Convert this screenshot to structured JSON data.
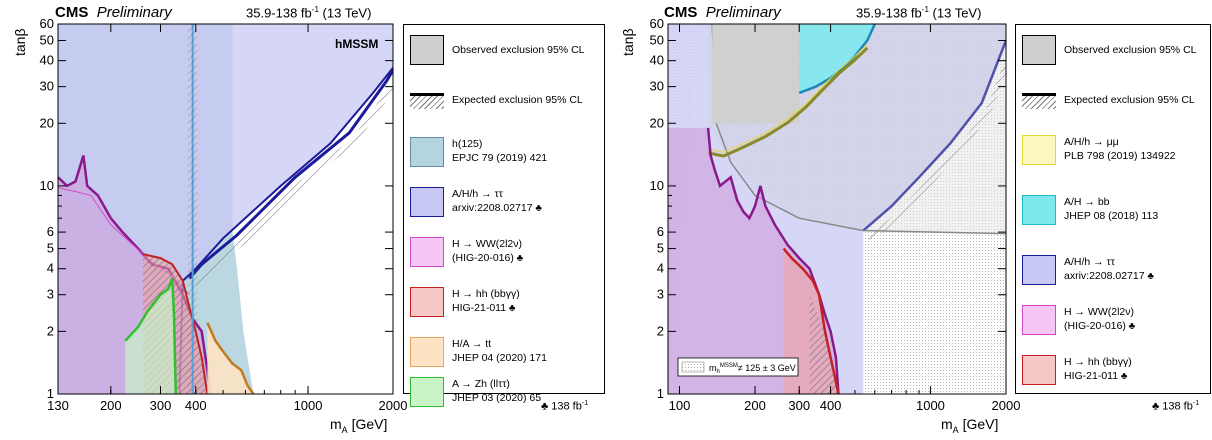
{
  "chart_data": [
    {
      "type": "area",
      "header": {
        "experiment": "CMS",
        "status": "Preliminary",
        "lumi": "35.9-138 fb",
        "lumi_sup": "-1",
        "energy": "(13 TeV)"
      },
      "model_label": "hMSSM",
      "xlabel": "m",
      "xlabel_sub": "A",
      "xlabel_unit": " [GeV]",
      "ylabel": "tanβ",
      "xscale": "log",
      "yscale": "log",
      "xlim": [
        130,
        2000
      ],
      "ylim": [
        1,
        60
      ],
      "xticks": [
        "130",
        "200",
        "300",
        "400",
        "1000",
        "2000"
      ],
      "xtick_values": [
        130,
        200,
        300,
        400,
        1000,
        2000
      ],
      "yticks": [
        "1",
        "2",
        "3",
        "4",
        "5",
        "6",
        "10",
        "20",
        "30",
        "40",
        "50",
        "60"
      ],
      "ytick_values": [
        1,
        2,
        3,
        4,
        5,
        6,
        10,
        20,
        30,
        40,
        50,
        60
      ],
      "legend": [
        {
          "text": "Observed exclusion 95% CL",
          "kind": "observed"
        },
        {
          "text": "Expected exclusion 95% CL",
          "kind": "expected"
        },
        {
          "text": "h(125)",
          "text2": "EPJC 79 (2019) 421",
          "kind": "fill",
          "fill": "#b4d4df",
          "stroke": "#5f8fa5",
          "club": false
        },
        {
          "text": "A/H/h → ττ",
          "text2": "arxiv:2208.02717",
          "kind": "fill",
          "fill": "#c8c8f4",
          "stroke": "#1b1b9a",
          "club": true
        },
        {
          "text": "H → WW(2l2ν)",
          "text2": "(HIG-20-016)",
          "kind": "fill",
          "fill": "#f6c6f6",
          "stroke": "#d04ad0",
          "club": true
        },
        {
          "text": "H → hh (bbγγ)",
          "text2": "HIG-21-011",
          "kind": "fill",
          "fill": "#f6c7c7",
          "stroke": "#c52020",
          "club": true
        },
        {
          "text": "H/A → tt",
          "text2": "JHEP 04 (2020) 171",
          "kind": "fill",
          "fill": "#fde3c3",
          "stroke": "#e6a760",
          "club": false
        },
        {
          "text": "A → Zh (llττ)",
          "text2": "JHEP 03 (2020) 65",
          "kind": "fill",
          "fill": "#c8f4c8",
          "stroke": "#2fbf2f",
          "club": false
        }
      ],
      "footnote": "♣ 138 fb",
      "footnote_sup": "-1",
      "series": [
        {
          "name": "h(125)",
          "color": "#b4d4df",
          "boundary": [
            [
              130,
              60
            ],
            [
              540,
              60
            ],
            [
              540,
              6
            ],
            [
              560,
              4
            ],
            [
              590,
              2
            ],
            [
              640,
              1
            ]
          ]
        },
        {
          "name": "A/H/h → ττ",
          "color": "#c8c8f4",
          "edge": "#1b1b9a",
          "observed": [
            [
              350,
              1
            ],
            [
              360,
              3.5
            ],
            [
              400,
              4
            ],
            [
              500,
              5.6
            ],
            [
              800,
              10
            ],
            [
              1200,
              16
            ],
            [
              1700,
              28
            ],
            [
              2000,
              37
            ]
          ],
          "expected": [
            [
              380,
              3.6
            ],
            [
              420,
              4.2
            ],
            [
              560,
              5.8
            ],
            [
              900,
              11
            ],
            [
              1400,
              18
            ],
            [
              1900,
              32
            ],
            [
              2000,
              36
            ]
          ]
        },
        {
          "name": "H → WW(2l2ν)",
          "color": "#f6c6f6",
          "edge": "#8a1a8a",
          "observed": [
            [
              130,
              11
            ],
            [
              140,
              10
            ],
            [
              150,
              10.5
            ],
            [
              160,
              14
            ],
            [
              165,
              10
            ],
            [
              180,
              9
            ],
            [
              200,
              7
            ],
            [
              220,
              6
            ],
            [
              250,
              5
            ],
            [
              280,
              4.2
            ],
            [
              320,
              4
            ],
            [
              360,
              3
            ],
            [
              390,
              2.3
            ],
            [
              420,
              2
            ],
            [
              440,
              1.3
            ],
            [
              450,
              1
            ]
          ],
          "expected": [
            [
              130,
              9.8
            ],
            [
              150,
              9.4
            ],
            [
              170,
              9
            ],
            [
              200,
              6.5
            ],
            [
              240,
              5.2
            ],
            [
              280,
              4.3
            ],
            [
              330,
              3.7
            ],
            [
              380,
              3
            ]
          ]
        },
        {
          "name": "H → hh (bbγγ)",
          "color": "#f6c7c7",
          "edge": "#c52020",
          "observed": [
            [
              260,
              4.7
            ],
            [
              300,
              4.5
            ],
            [
              330,
              4.2
            ],
            [
              360,
              3.5
            ],
            [
              380,
              2.6
            ],
            [
              400,
              2
            ],
            [
              420,
              1.5
            ],
            [
              440,
              1
            ]
          ]
        },
        {
          "name": "H/A → tt",
          "color": "#fde3c3",
          "edge": "#c07a20",
          "observed": [
            [
              440,
              2.2
            ],
            [
              470,
              1.8
            ],
            [
              500,
              1.6
            ],
            [
              540,
              1.4
            ],
            [
              580,
              1.3
            ],
            [
              610,
              1.1
            ],
            [
              640,
              1
            ]
          ]
        },
        {
          "name": "A → Zh (llττ)",
          "color": "#c8f4c8",
          "edge": "#2fbf2f",
          "observed": [
            [
              225,
              1.8
            ],
            [
              250,
              2.1
            ],
            [
              270,
              2.5
            ],
            [
              300,
              3
            ],
            [
              320,
              3.2
            ],
            [
              330,
              3.6
            ],
            [
              335,
              2.4
            ],
            [
              340,
              1
            ]
          ]
        }
      ]
    },
    {
      "type": "area",
      "header": {
        "experiment": "CMS",
        "status": "Preliminary",
        "lumi": "35.9-138 fb",
        "lumi_sup": "-1",
        "energy": "(13 TeV)"
      },
      "xlabel": "m",
      "xlabel_sub": "A",
      "xlabel_unit": " [GeV]",
      "ylabel": "tanβ",
      "xscale": "log",
      "yscale": "log",
      "xlim": [
        90,
        2000
      ],
      "ylim": [
        1,
        60
      ],
      "xticks": [
        "100",
        "200",
        "300",
        "400",
        "1000",
        "2000"
      ],
      "xtick_values": [
        100,
        200,
        300,
        400,
        1000,
        2000
      ],
      "yticks": [
        "1",
        "2",
        "3",
        "4",
        "5",
        "6",
        "10",
        "20",
        "30",
        "40",
        "50",
        "60"
      ],
      "ytick_values": [
        1,
        2,
        3,
        4,
        5,
        6,
        10,
        20,
        30,
        40,
        50,
        60
      ],
      "inset": {
        "text": "m",
        "sub": "h",
        "sup": "MSSM",
        "rest": "≠ 125 ± 3 GeV"
      },
      "legend": [
        {
          "text": "Observed exclusion 95% CL",
          "kind": "observed"
        },
        {
          "text": "Expected exclusion 95% CL",
          "kind": "expected"
        },
        {
          "text": "A/H/h → μμ",
          "text2": "PLB 798 (2019) 134922",
          "kind": "fill",
          "fill": "#fbf7bf",
          "stroke": "#e6d83a",
          "club": false
        },
        {
          "text": "A/H → bb",
          "text2": "JHEP 08 (2018) 113",
          "kind": "fill",
          "fill": "#7ee8ee",
          "stroke": "#20b8c4",
          "club": false
        },
        {
          "text": "A/H/h → ττ",
          "text2": "axriv:2208.02717",
          "kind": "fill",
          "fill": "#c8c8f4",
          "stroke": "#1b1b9a",
          "club": true
        },
        {
          "text": "H → WW(2l2ν)",
          "text2": "(HIG-20-016)",
          "kind": "fill",
          "fill": "#f6c6f6",
          "stroke": "#d04ad0",
          "club": true
        },
        {
          "text": "H → hh (bbγγ)",
          "text2": "HIG-21-011",
          "kind": "fill",
          "fill": "#f6c7c7",
          "stroke": "#c52020",
          "club": true
        }
      ],
      "footnote": "♣ 138 fb",
      "footnote_sup": "-1",
      "series": [
        {
          "name": "A/H/h → μμ",
          "color": "#fbf7bf",
          "edge": "#8a8a2a",
          "observed": [
            [
              130,
              15
            ],
            [
              150,
              14.5
            ],
            [
              180,
              16
            ],
            [
              220,
              18
            ],
            [
              270,
              21
            ],
            [
              320,
              25
            ],
            [
              370,
              30
            ],
            [
              430,
              36
            ],
            [
              500,
              42
            ],
            [
              560,
              48
            ]
          ]
        },
        {
          "name": "A/H → bb",
          "color": "#7ee8ee",
          "edge": "#1a8ab4",
          "observed": [
            [
              300,
              28
            ],
            [
              350,
              30
            ],
            [
              400,
              33
            ],
            [
              450,
              37
            ],
            [
              500,
              42
            ],
            [
              560,
              50
            ],
            [
              600,
              60
            ]
          ]
        },
        {
          "name": "A/H/h → ττ",
          "color": "#c8c8f4",
          "edge": "#1b1b9a",
          "observed": [
            [
              540,
              6.1
            ],
            [
              700,
              8
            ],
            [
              900,
              11
            ],
            [
              1200,
              16
            ],
            [
              1600,
              25
            ],
            [
              2000,
              50
            ]
          ]
        },
        {
          "name": "H → WW(2l2ν)",
          "color": "#f6c6f6",
          "edge": "#8a1a8a",
          "observed": [
            [
              130,
              19
            ],
            [
              133,
              14
            ],
            [
              138,
              12
            ],
            [
              145,
              10
            ],
            [
              160,
              11
            ],
            [
              170,
              8.5
            ],
            [
              180,
              7.5
            ],
            [
              190,
              7
            ],
            [
              200,
              8
            ],
            [
              210,
              10
            ],
            [
              220,
              8
            ],
            [
              240,
              6.5
            ],
            [
              270,
              5.2
            ],
            [
              300,
              4.5
            ],
            [
              330,
              4
            ],
            [
              360,
              3
            ],
            [
              380,
              2.4
            ],
            [
              400,
              2
            ],
            [
              420,
              1.5
            ],
            [
              430,
              1
            ]
          ]
        },
        {
          "name": "H → hh (bbγγ)",
          "color": "#f6c7c7",
          "edge": "#c52020",
          "observed": [
            [
              260,
              5
            ],
            [
              280,
              4.5
            ],
            [
              310,
              4
            ],
            [
              340,
              3.5
            ],
            [
              360,
              3
            ],
            [
              380,
              2
            ],
            [
              400,
              1.5
            ],
            [
              430,
              1
            ]
          ]
        }
      ]
    }
  ]
}
